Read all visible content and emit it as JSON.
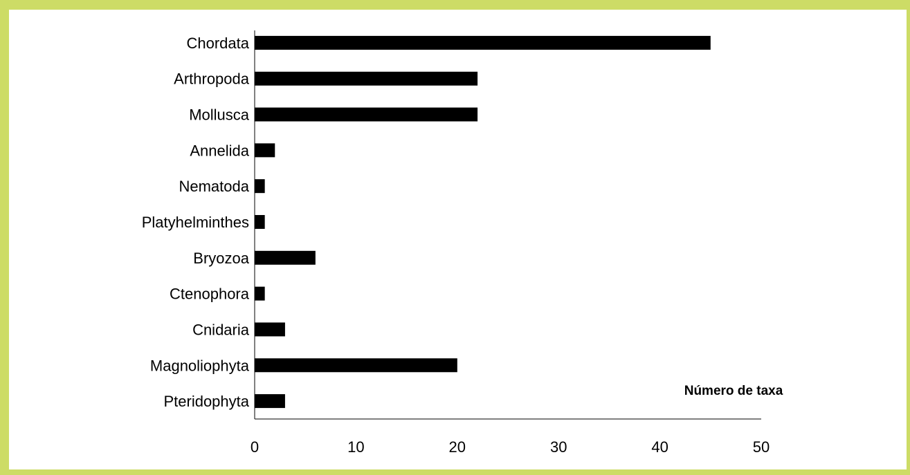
{
  "chart_data": {
    "type": "bar",
    "orientation": "horizontal",
    "categories": [
      "Chordata",
      "Arthropoda",
      "Mollusca",
      "Annelida",
      "Nematoda",
      "Platyhelminthes",
      "Bryozoa",
      "Ctenophora",
      "Cnidaria",
      "Magnoliophyta",
      "Pteridophyta"
    ],
    "values": [
      45,
      22,
      22,
      2,
      1,
      1,
      6,
      1,
      3,
      20,
      3
    ],
    "xlabel": "Número de taxa",
    "xlim": [
      0,
      50
    ],
    "xticks": [
      0,
      10,
      20,
      30,
      40,
      50
    ],
    "bar_color": "#000000",
    "grid": false
  },
  "frame_color": "#cddc66"
}
